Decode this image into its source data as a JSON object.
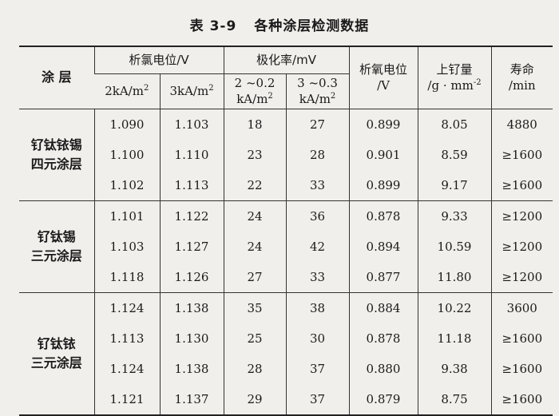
{
  "title": {
    "number": "表 3-9",
    "text": "各种涂层检测数据"
  },
  "headers": {
    "coating": "涂 层",
    "oxygen_potential_group": "析氯电位/V",
    "col_2ka": "2kA/m",
    "col_3ka": "3kA/m",
    "sup": "2",
    "polarization_group": "极化率/mV",
    "pol_a_top": "2 ~0.2",
    "pol_a_bottom": "kA/m",
    "pol_b_top": "3 ~0.3",
    "pol_b_bottom": "kA/m",
    "oxy_potential_top": "析氧电位",
    "oxy_potential_unit": "/V",
    "ru_loading_top": "上钌量",
    "ru_loading_unit": "/g · mm",
    "ru_loading_sup": "-2",
    "life_top": "寿命",
    "life_unit": "/min"
  },
  "groups": [
    {
      "name_line1": "钌钛铱锡",
      "name_line2": "四元涂层",
      "rows": [
        [
          "1.090",
          "1.103",
          "18",
          "27",
          "0.899",
          "8.05",
          "4880"
        ],
        [
          "1.100",
          "1.110",
          "23",
          "28",
          "0.901",
          "8.59",
          "≥1600"
        ],
        [
          "1.102",
          "1.113",
          "22",
          "33",
          "0.899",
          "9.17",
          "≥1600"
        ]
      ]
    },
    {
      "name_line1": "钌钛锡",
      "name_line2": "三元涂层",
      "rows": [
        [
          "1.101",
          "1.122",
          "24",
          "36",
          "0.878",
          "9.33",
          "≥1200"
        ],
        [
          "1.103",
          "1.127",
          "24",
          "42",
          "0.894",
          "10.59",
          "≥1200"
        ],
        [
          "1.118",
          "1.126",
          "27",
          "33",
          "0.877",
          "11.80",
          "≥1200"
        ]
      ]
    },
    {
      "name_line1": "钌钛铱",
      "name_line2": "三元涂层",
      "rows": [
        [
          "1.124",
          "1.138",
          "35",
          "38",
          "0.884",
          "10.22",
          "3600"
        ],
        [
          "1.113",
          "1.130",
          "25",
          "30",
          "0.878",
          "11.18",
          "≥1600"
        ],
        [
          "1.124",
          "1.138",
          "28",
          "37",
          "0.880",
          "9.38",
          "≥1600"
        ],
        [
          "1.121",
          "1.137",
          "29",
          "37",
          "0.879",
          "8.75",
          "≥1600"
        ]
      ]
    }
  ]
}
